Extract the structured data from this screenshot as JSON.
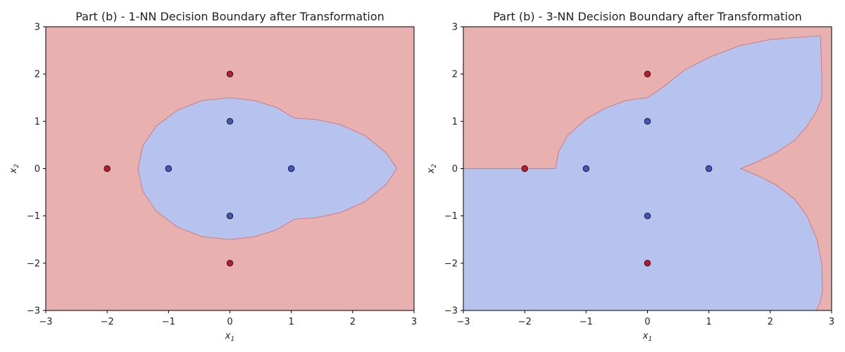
{
  "colors": {
    "class_a_region": "#e9b0b0",
    "class_b_region": "#b7c3ef",
    "class_a_point": "#c4182a",
    "class_b_point": "#4357c0",
    "point_edge": "#1a1a1a",
    "boundary": "#cf6b6b"
  },
  "chart_data": [
    {
      "type": "scatter",
      "title": "Part (b) - 1-NN Decision Boundary after Transformation",
      "xlabel": "x1",
      "ylabel": "x2",
      "xlim": [
        -3,
        3
      ],
      "ylim": [
        -3,
        3
      ],
      "xticks": [
        "−3",
        "−2",
        "−1",
        "0",
        "1",
        "2",
        "3"
      ],
      "yticks": [
        "−3",
        "−2",
        "−1",
        "0",
        "1",
        "2",
        "3"
      ],
      "grid": false,
      "background_class": "class_a",
      "decision_region": {
        "class": "class_b",
        "outline": [
          [
            -1.5,
            0.0
          ],
          [
            -1.42,
            0.48
          ],
          [
            -1.2,
            0.9
          ],
          [
            -0.85,
            1.24
          ],
          [
            -0.45,
            1.44
          ],
          [
            0.0,
            1.5
          ],
          [
            0.4,
            1.44
          ],
          [
            0.75,
            1.3
          ],
          [
            1.05,
            1.07
          ],
          [
            1.4,
            1.04
          ],
          [
            1.8,
            0.93
          ],
          [
            2.2,
            0.7
          ],
          [
            2.55,
            0.33
          ],
          [
            2.72,
            0.0
          ],
          [
            2.55,
            -0.33
          ],
          [
            2.2,
            -0.7
          ],
          [
            1.8,
            -0.93
          ],
          [
            1.4,
            -1.04
          ],
          [
            1.05,
            -1.07
          ],
          [
            0.75,
            -1.3
          ],
          [
            0.4,
            -1.44
          ],
          [
            0.0,
            -1.5
          ],
          [
            -0.45,
            -1.44
          ],
          [
            -0.85,
            -1.24
          ],
          [
            -1.2,
            -0.9
          ],
          [
            -1.42,
            -0.48
          ]
        ]
      },
      "series": [
        {
          "class": "class_a",
          "points": [
            [
              -2,
              0
            ],
            [
              0,
              2
            ],
            [
              0,
              -2
            ]
          ]
        },
        {
          "class": "class_b",
          "points": [
            [
              -1,
              0
            ],
            [
              0,
              1
            ],
            [
              1,
              0
            ],
            [
              0,
              -1
            ]
          ]
        }
      ]
    },
    {
      "type": "scatter",
      "title": "Part (b) - 3-NN Decision Boundary after Transformation",
      "xlabel": "x1",
      "ylabel": "x2",
      "xlim": [
        -3,
        3
      ],
      "ylim": [
        -3,
        3
      ],
      "xticks": [
        "−3",
        "−2",
        "−1",
        "0",
        "1",
        "2",
        "3"
      ],
      "yticks": [
        "−3",
        "−2",
        "−1",
        "0",
        "1",
        "2",
        "3"
      ],
      "grid": false,
      "background_class": "class_a",
      "decision_region": {
        "class": "class_b",
        "outline": [
          [
            -3.0,
            0.0
          ],
          [
            -1.5,
            0.0
          ],
          [
            -1.45,
            0.35
          ],
          [
            -1.3,
            0.7
          ],
          [
            -1.0,
            1.05
          ],
          [
            -0.7,
            1.27
          ],
          [
            -0.35,
            1.44
          ],
          [
            0.0,
            1.5
          ],
          [
            0.25,
            1.72
          ],
          [
            0.6,
            2.08
          ],
          [
            1.0,
            2.35
          ],
          [
            1.5,
            2.6
          ],
          [
            2.0,
            2.73
          ],
          [
            2.8,
            2.81
          ],
          [
            2.82,
            2.8
          ],
          [
            2.84,
            2.0
          ],
          [
            2.84,
            1.5
          ],
          [
            2.75,
            1.2
          ],
          [
            2.6,
            0.9
          ],
          [
            2.4,
            0.6
          ],
          [
            2.1,
            0.34
          ],
          [
            1.8,
            0.15
          ],
          [
            1.52,
            0.0
          ],
          [
            1.8,
            -0.15
          ],
          [
            2.1,
            -0.35
          ],
          [
            2.4,
            -0.65
          ],
          [
            2.6,
            -1.0
          ],
          [
            2.76,
            -1.5
          ],
          [
            2.84,
            -2.0
          ],
          [
            2.85,
            -2.6
          ],
          [
            2.82,
            -2.8
          ],
          [
            2.75,
            -3.0
          ],
          [
            -3.0,
            -3.0
          ]
        ]
      },
      "series": [
        {
          "class": "class_a",
          "points": [
            [
              -2,
              0
            ],
            [
              0,
              2
            ],
            [
              0,
              -2
            ]
          ]
        },
        {
          "class": "class_b",
          "points": [
            [
              -1,
              0
            ],
            [
              0,
              1
            ],
            [
              1,
              0
            ],
            [
              0,
              -1
            ]
          ]
        }
      ]
    }
  ]
}
